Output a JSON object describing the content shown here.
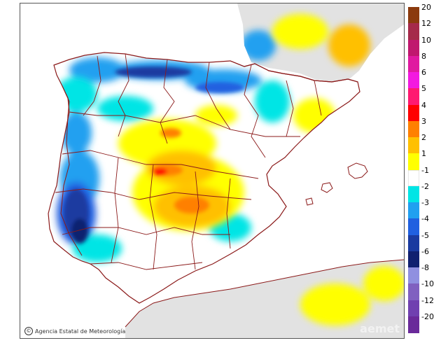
{
  "map": {
    "credit": "Agencia Estatal de Meteorología",
    "watermark": "aemet"
  },
  "colors": {
    "sea": "#ffffff",
    "land_outside": "#e2e2e2",
    "border": "#8b1a1a"
  },
  "legend": {
    "items": [
      {
        "label": "20",
        "color": "#8b3a0e"
      },
      {
        "label": "12",
        "color": "#a52a4a"
      },
      {
        "label": "10",
        "color": "#c0186e"
      },
      {
        "label": "8",
        "color": "#e01aa0"
      },
      {
        "label": "6",
        "color": "#f31ae0"
      },
      {
        "label": "5",
        "color": "#ff1a70"
      },
      {
        "label": "4",
        "color": "#ff0000"
      },
      {
        "label": "3",
        "color": "#ff8000"
      },
      {
        "label": "2",
        "color": "#ffc000"
      },
      {
        "label": "1",
        "color": "#ffff00"
      },
      {
        "label": "-1",
        "color": "#ffffff"
      },
      {
        "label": "-2",
        "color": "#00e5e5"
      },
      {
        "label": "-3",
        "color": "#20a0f0"
      },
      {
        "label": "-4",
        "color": "#2060e0"
      },
      {
        "label": "-5",
        "color": "#1a3aa0"
      },
      {
        "label": "-6",
        "color": "#102070"
      },
      {
        "label": "-8",
        "color": "#9090e0"
      },
      {
        "label": "-10",
        "color": "#8060c0"
      },
      {
        "label": "-12",
        "color": "#7040b0"
      },
      {
        "label": "-20",
        "color": "#6a2a9a"
      }
    ]
  }
}
